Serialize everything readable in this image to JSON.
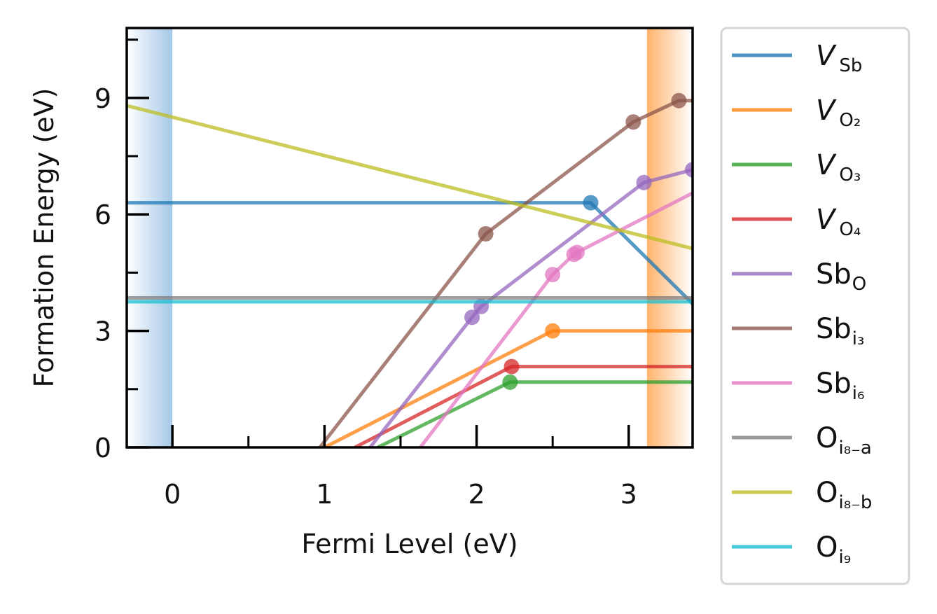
{
  "chart_data": {
    "type": "line",
    "title": "",
    "xlabel": "Fermi Level (eV)",
    "ylabel": "Formation Energy (eV)",
    "xlim": [
      -0.3,
      3.42
    ],
    "ylim": [
      0,
      10.8
    ],
    "xticks": [
      "0",
      "1",
      "2",
      "3"
    ],
    "xtick_values": [
      0,
      1,
      2,
      3
    ],
    "yticks": [
      "0",
      "3",
      "6",
      "9"
    ],
    "ytick_values": [
      0,
      3,
      6,
      9
    ],
    "vbm": 0,
    "cbm": 3.12,
    "band_colors": {
      "vbm": "#5b9bd5",
      "cbm": "#ff9a3c"
    },
    "legend_position": "outside-right",
    "series": [
      {
        "name_main": "V",
        "name_sub": "Sb",
        "name_italic": true,
        "color": "#1f77b4",
        "points": [
          [
            -0.3,
            6.3
          ],
          [
            2.75,
            6.3
          ],
          [
            3.42,
            3.7
          ]
        ],
        "markers": [
          [
            2.75,
            6.3
          ]
        ]
      },
      {
        "name_main": "V",
        "name_sub": "O₂",
        "name_italic": true,
        "color": "#ff7f0e",
        "points": [
          [
            1.0,
            0.0
          ],
          [
            2.5,
            3.0
          ],
          [
            3.42,
            3.0
          ]
        ],
        "markers": [
          [
            2.5,
            3.0
          ]
        ]
      },
      {
        "name_main": "V",
        "name_sub": "O₃",
        "name_italic": true,
        "color": "#2ca02c",
        "points": [
          [
            1.35,
            0.0
          ],
          [
            2.22,
            1.68
          ],
          [
            3.42,
            1.68
          ]
        ],
        "markers": [
          [
            2.22,
            1.68
          ]
        ]
      },
      {
        "name_main": "V",
        "name_sub": "O₄",
        "name_italic": true,
        "color": "#d62728",
        "points": [
          [
            1.2,
            0.0
          ],
          [
            2.23,
            2.08
          ],
          [
            3.42,
            2.08
          ]
        ],
        "markers": [
          [
            2.23,
            2.08
          ]
        ]
      },
      {
        "name_main": "Sb",
        "name_sub": "O",
        "name_italic": false,
        "color": "#9467bd",
        "points": [
          [
            1.3,
            0.0
          ],
          [
            1.97,
            3.35
          ],
          [
            2.03,
            3.63
          ],
          [
            3.1,
            6.82
          ],
          [
            3.42,
            7.15
          ]
        ],
        "markers": [
          [
            1.97,
            3.35
          ],
          [
            2.03,
            3.63
          ],
          [
            3.1,
            6.82
          ],
          [
            3.42,
            7.15
          ]
        ]
      },
      {
        "name_main": "Sb",
        "name_sub": "i₃",
        "name_italic": false,
        "color": "#8c564b",
        "points": [
          [
            0.97,
            0.0
          ],
          [
            2.06,
            5.5
          ],
          [
            3.03,
            8.38
          ],
          [
            3.33,
            8.93
          ],
          [
            3.42,
            8.93
          ]
        ],
        "markers": [
          [
            2.06,
            5.5
          ],
          [
            3.03,
            8.38
          ],
          [
            3.33,
            8.93
          ]
        ]
      },
      {
        "name_main": "Sb",
        "name_sub": "i₆",
        "name_italic": false,
        "color": "#e377c2",
        "points": [
          [
            1.63,
            0.0
          ],
          [
            2.5,
            4.45
          ],
          [
            2.64,
            4.97
          ],
          [
            2.66,
            5.02
          ],
          [
            3.42,
            6.55
          ]
        ],
        "markers": [
          [
            2.5,
            4.45
          ],
          [
            2.64,
            4.97
          ],
          [
            2.66,
            5.02
          ]
        ]
      },
      {
        "name_main": "O",
        "name_sub": "i₈₋a",
        "name_italic": false,
        "color": "#7f7f7f",
        "points": [
          [
            -0.3,
            3.85
          ],
          [
            3.42,
            3.85
          ]
        ],
        "markers": []
      },
      {
        "name_main": "O",
        "name_sub": "i₈₋b",
        "name_italic": false,
        "color": "#bcbd22",
        "points": [
          [
            -0.3,
            8.8
          ],
          [
            3.42,
            5.12
          ]
        ],
        "markers": []
      },
      {
        "name_main": "O",
        "name_sub": "i₉",
        "name_italic": false,
        "color": "#17becf",
        "points": [
          [
            -0.3,
            3.75
          ],
          [
            3.42,
            3.75
          ]
        ],
        "markers": []
      }
    ]
  }
}
